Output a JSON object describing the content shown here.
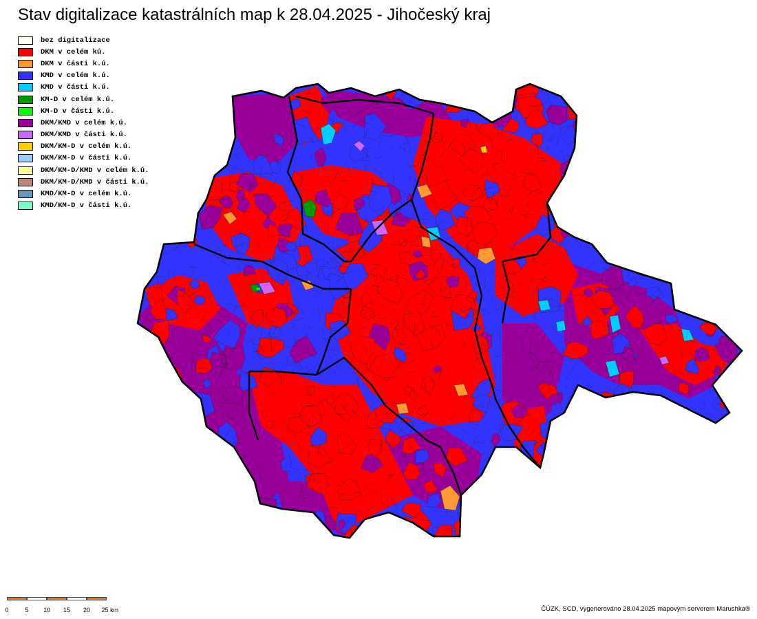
{
  "title": "Stav digitalizace katastrálních map k 28.04.2025 - Jihočeský kraj",
  "legend": [
    {
      "label": "bez digitalizace",
      "color": "#fffff0"
    },
    {
      "label": "DKM v celém kú.",
      "color": "#ff0000"
    },
    {
      "label": "DKM v části k.ú.",
      "color": "#ff9933"
    },
    {
      "label": "KMD v celém k.ú.",
      "color": "#3333ff"
    },
    {
      "label": "KMD v části k.ú.",
      "color": "#00ccff"
    },
    {
      "label": "KM-D v celém k.ú.",
      "color": "#009900"
    },
    {
      "label": "KM-D v části k.ú.",
      "color": "#00ff00"
    },
    {
      "label": "DKM/KMD v celém k.ú.",
      "color": "#990099"
    },
    {
      "label": "DKM/KMD v části k.ú.",
      "color": "#cc66ff"
    },
    {
      "label": "DKM/KM-D v celém k.ú.",
      "color": "#ffcc00"
    },
    {
      "label": "DKM/KM-D v části k.ú.",
      "color": "#99ccff"
    },
    {
      "label": "DKM/KM-D/KMD v celém k.ú.",
      "color": "#ffff99"
    },
    {
      "label": "DKM/KM-D/KMD v části k.ú.",
      "color": "#bb8877"
    },
    {
      "label": "KMD/KM-D v celém k.ú.",
      "color": "#6699bb"
    },
    {
      "label": "KMD/KM-D v části k.ú.",
      "color": "#77ffcc"
    }
  ],
  "scale": {
    "ticks": [
      "0",
      "5",
      "10",
      "15",
      "20",
      "25 km"
    ],
    "colors": [
      "#e07b39",
      "#ffffff"
    ]
  },
  "credit": "ČÚZK, SCD, vygenerováno 28.04.2025 mapovým serverem Marushka®"
}
